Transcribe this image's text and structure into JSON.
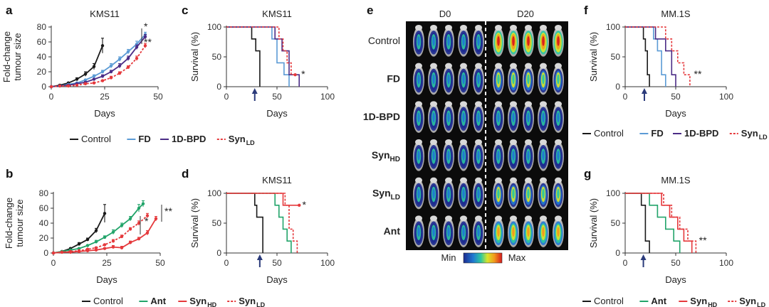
{
  "colors": {
    "control": "#1a1a1a",
    "fd": "#5b9bd5",
    "bpd": "#4b2c86",
    "syn_ld": "#e5393c",
    "syn_hd": "#e5393c",
    "ant": "#22a46a",
    "arrow": "#2a3a7a"
  },
  "panel_e": {
    "label": "e",
    "time_left": "D0",
    "time_right": "D20",
    "rows": [
      {
        "label": "Control",
        "bold": false
      },
      {
        "label": "FD",
        "bold": true
      },
      {
        "label": "1D-BPD",
        "bold": true
      },
      {
        "label": "Syn",
        "sub": "HD",
        "bold": true
      },
      {
        "label": "Syn",
        "sub": "LD",
        "bold": true
      },
      {
        "label": "Ant",
        "bold": true
      }
    ],
    "scale_min": "Min",
    "scale_max": "Max"
  },
  "legends": {
    "ac": [
      {
        "key": "control",
        "label": "Control"
      },
      {
        "key": "fd",
        "label": "FD",
        "bold": true
      },
      {
        "key": "bpd",
        "label": "1D-BPD",
        "bold": true
      },
      {
        "key": "syn_ld",
        "label": "Syn",
        "sub": "LD",
        "bold": true,
        "dashed": true
      }
    ],
    "bd": [
      {
        "key": "control",
        "label": "Control"
      },
      {
        "key": "ant",
        "label": "Ant",
        "bold": true
      },
      {
        "key": "syn_hd",
        "label": "Syn",
        "sub": "HD",
        "bold": true
      },
      {
        "key": "syn_ld",
        "label": "Syn",
        "sub": "LD",
        "bold": true,
        "dashed": true
      }
    ],
    "f": [
      {
        "key": "control",
        "label": "Control"
      },
      {
        "key": "fd",
        "label": "FD",
        "bold": true
      },
      {
        "key": "bpd",
        "label": "1D-BPD",
        "bold": true
      },
      {
        "key": "syn_ld",
        "label": "Syn",
        "sub": "LD",
        "bold": true,
        "dashed": true
      }
    ],
    "g": [
      {
        "key": "control",
        "label": "Control"
      },
      {
        "key": "ant",
        "label": "Ant",
        "bold": true
      },
      {
        "key": "syn_hd",
        "label": "Syn",
        "sub": "HD",
        "bold": true
      },
      {
        "key": "syn_ld",
        "label": "Syn",
        "sub": "LD",
        "bold": true,
        "dashed": true
      }
    ]
  },
  "chart_data": [
    {
      "panel": "a",
      "type": "line",
      "title": "KMS11",
      "xlabel": "Days",
      "ylabel": "Fold-change tumour size",
      "xlim": [
        0,
        50
      ],
      "ylim": [
        0,
        80
      ],
      "xticks": [
        0,
        25,
        50
      ],
      "yticks": [
        0,
        20,
        40,
        60,
        80
      ],
      "annotations": [
        "*",
        "**"
      ],
      "series": [
        {
          "key": "control",
          "x": [
            0,
            4,
            8,
            12,
            16,
            20,
            24
          ],
          "y": [
            0,
            2,
            5,
            10,
            17,
            27,
            55
          ],
          "err": [
            0,
            1,
            1,
            2,
            3,
            4,
            10
          ]
        },
        {
          "key": "fd",
          "x": [
            0,
            4,
            8,
            12,
            16,
            20,
            24,
            28,
            32,
            36,
            40,
            44
          ],
          "y": [
            0,
            1,
            3,
            5,
            9,
            14,
            20,
            28,
            37,
            47,
            57,
            70
          ],
          "err": [
            0,
            0,
            1,
            1,
            1,
            2,
            2,
            3,
            3,
            3,
            4,
            3
          ]
        },
        {
          "key": "bpd",
          "x": [
            0,
            4,
            8,
            12,
            16,
            20,
            24,
            28,
            32,
            36,
            40,
            44
          ],
          "y": [
            0,
            1,
            2,
            4,
            6,
            10,
            14,
            20,
            28,
            38,
            53,
            67
          ],
          "err": [
            0,
            0,
            1,
            1,
            1,
            1,
            2,
            2,
            3,
            3,
            3,
            3
          ]
        },
        {
          "key": "syn_ld",
          "x": [
            0,
            4,
            8,
            12,
            16,
            20,
            24,
            28,
            32,
            36,
            40,
            44
          ],
          "y": [
            0,
            1,
            1,
            2,
            4,
            5,
            8,
            12,
            18,
            26,
            38,
            55
          ],
          "err": [
            0,
            0,
            0,
            1,
            1,
            1,
            1,
            2,
            2,
            2,
            3,
            3
          ],
          "dashed": true
        }
      ]
    },
    {
      "panel": "b",
      "type": "line",
      "title": "",
      "xlabel": "Days",
      "ylabel": "Fold-change tumour size",
      "xlim": [
        0,
        50
      ],
      "ylim": [
        0,
        80
      ],
      "xticks": [
        0,
        25,
        50
      ],
      "yticks": [
        0,
        20,
        40,
        60,
        80
      ],
      "annotations": [
        "**",
        "*"
      ],
      "series": [
        {
          "key": "control",
          "x": [
            0,
            4,
            8,
            12,
            16,
            20,
            24
          ],
          "y": [
            0,
            2,
            6,
            12,
            18,
            30,
            53
          ],
          "err": [
            0,
            1,
            1,
            2,
            2,
            3,
            12
          ]
        },
        {
          "key": "ant",
          "x": [
            0,
            4,
            8,
            12,
            16,
            20,
            24,
            28,
            32,
            36,
            40,
            42
          ],
          "y": [
            0,
            2,
            4,
            6,
            10,
            15,
            21,
            28,
            37,
            46,
            60,
            66
          ],
          "err": [
            0,
            0,
            1,
            1,
            1,
            2,
            2,
            3,
            3,
            3,
            5,
            4
          ]
        },
        {
          "key": "syn_ld",
          "x": [
            0,
            4,
            8,
            12,
            16,
            20,
            24,
            28,
            32,
            36,
            40,
            44
          ],
          "y": [
            0,
            1,
            2,
            3,
            5,
            7,
            11,
            16,
            22,
            32,
            40,
            50
          ],
          "err": [
            0,
            0,
            0,
            1,
            1,
            1,
            1,
            2,
            2,
            2,
            3,
            3
          ],
          "dashed": true
        },
        {
          "key": "syn_hd",
          "x": [
            0,
            4,
            8,
            12,
            16,
            20,
            24,
            28,
            32,
            36,
            40,
            44,
            48
          ],
          "y": [
            0,
            1,
            1,
            2,
            3,
            4,
            6,
            8,
            7,
            14,
            19,
            27,
            46
          ],
          "err": [
            0,
            0,
            0,
            1,
            1,
            1,
            1,
            2,
            2,
            2,
            2,
            3,
            3
          ]
        }
      ]
    },
    {
      "panel": "c",
      "type": "survival",
      "title": "KMS11",
      "xlabel": "Days",
      "ylabel": "Survival (%)",
      "xlim": [
        0,
        100
      ],
      "ylim": [
        0,
        100
      ],
      "xticks": [
        0,
        50,
        100
      ],
      "yticks": [
        0,
        50,
        100
      ],
      "arrow_day": 28,
      "annotations": [
        "*"
      ],
      "series": [
        {
          "key": "control",
          "x": [
            0,
            25,
            25,
            29,
            29,
            33,
            33
          ],
          "y": [
            100,
            100,
            80,
            80,
            60,
            60,
            0
          ]
        },
        {
          "key": "fd",
          "x": [
            0,
            45,
            45,
            50,
            50,
            57,
            57,
            62,
            62
          ],
          "y": [
            100,
            100,
            80,
            80,
            40,
            40,
            20,
            20,
            0
          ]
        },
        {
          "key": "bpd",
          "x": [
            0,
            48,
            48,
            55,
            55,
            62,
            62,
            67,
            67,
            72,
            72
          ],
          "y": [
            100,
            100,
            80,
            80,
            60,
            60,
            20,
            20,
            20,
            20,
            0
          ]
        },
        {
          "key": "syn_ld",
          "x": [
            0,
            52,
            52,
            56,
            56,
            60,
            60,
            64,
            64,
            68,
            68
          ],
          "y": [
            100,
            100,
            80,
            80,
            60,
            60,
            40,
            40,
            20,
            20,
            20
          ],
          "dashed": true
        }
      ]
    },
    {
      "panel": "d",
      "type": "survival",
      "title": "KMS11",
      "xlabel": "Days",
      "ylabel": "Survival (%)",
      "xlim": [
        0,
        100
      ],
      "ylim": [
        0,
        100
      ],
      "xticks": [
        0,
        50,
        100
      ],
      "yticks": [
        0,
        50,
        100
      ],
      "arrow_day": 33,
      "annotations": [
        "*"
      ],
      "series": [
        {
          "key": "control",
          "x": [
            0,
            28,
            28,
            30,
            30,
            36,
            36
          ],
          "y": [
            100,
            100,
            80,
            80,
            60,
            60,
            0
          ]
        },
        {
          "key": "ant",
          "x": [
            0,
            48,
            48,
            52,
            52,
            56,
            56,
            60,
            60,
            64,
            64
          ],
          "y": [
            100,
            100,
            80,
            80,
            60,
            60,
            40,
            40,
            20,
            20,
            0
          ]
        },
        {
          "key": "syn_hd",
          "x": [
            0,
            56,
            56,
            68,
            68,
            72
          ],
          "y": [
            100,
            100,
            80,
            80,
            80,
            80
          ]
        },
        {
          "key": "syn_ld",
          "x": [
            0,
            58,
            58,
            62,
            62,
            66,
            66,
            70,
            70
          ],
          "y": [
            100,
            100,
            80,
            80,
            40,
            40,
            20,
            20,
            0
          ],
          "dashed": true
        }
      ]
    },
    {
      "panel": "f",
      "type": "survival",
      "title": "MM.1S",
      "xlabel": "Days",
      "ylabel": "Survival (%)",
      "xlim": [
        0,
        100
      ],
      "ylim": [
        0,
        100
      ],
      "xticks": [
        0,
        50,
        100
      ],
      "yticks": [
        0,
        50,
        100
      ],
      "arrow_day": 19,
      "annotations": [
        "**"
      ],
      "series": [
        {
          "key": "control",
          "x": [
            0,
            18,
            18,
            20,
            20,
            22,
            22,
            24,
            24
          ],
          "y": [
            100,
            100,
            80,
            80,
            60,
            60,
            20,
            20,
            0
          ]
        },
        {
          "key": "fd",
          "x": [
            0,
            28,
            28,
            32,
            32,
            36,
            36,
            40,
            40
          ],
          "y": [
            100,
            100,
            80,
            80,
            60,
            60,
            20,
            20,
            0
          ]
        },
        {
          "key": "bpd",
          "x": [
            0,
            30,
            30,
            40,
            40,
            46,
            46,
            50,
            50
          ],
          "y": [
            100,
            100,
            80,
            80,
            60,
            60,
            20,
            20,
            0
          ]
        },
        {
          "key": "syn_ld",
          "x": [
            0,
            40,
            40,
            46,
            46,
            52,
            52,
            58,
            58,
            64,
            64
          ],
          "y": [
            100,
            100,
            80,
            80,
            60,
            60,
            40,
            40,
            20,
            20,
            0
          ],
          "dashed": true
        }
      ]
    },
    {
      "panel": "g",
      "type": "survival",
      "title": "MM.1S",
      "xlabel": "Days",
      "ylabel": "Survival (%)",
      "xlim": [
        0,
        100
      ],
      "ylim": [
        0,
        100
      ],
      "xticks": [
        0,
        50,
        100
      ],
      "yticks": [
        0,
        50,
        100
      ],
      "arrow_day": 18,
      "annotations": [
        "**"
      ],
      "series": [
        {
          "key": "control",
          "x": [
            0,
            16,
            16,
            20,
            20,
            24,
            24
          ],
          "y": [
            100,
            100,
            80,
            80,
            20,
            20,
            0
          ]
        },
        {
          "key": "ant",
          "x": [
            0,
            24,
            24,
            32,
            32,
            40,
            40,
            48,
            48,
            54,
            54
          ],
          "y": [
            100,
            100,
            80,
            80,
            60,
            60,
            40,
            40,
            20,
            20,
            0
          ]
        },
        {
          "key": "syn_hd",
          "x": [
            0,
            36,
            36,
            44,
            44,
            52,
            52,
            58,
            58,
            66,
            66
          ],
          "y": [
            100,
            100,
            80,
            80,
            60,
            60,
            40,
            40,
            20,
            20,
            0
          ]
        },
        {
          "key": "syn_ld",
          "x": [
            0,
            38,
            38,
            46,
            46,
            54,
            54,
            62,
            62,
            70,
            70
          ],
          "y": [
            100,
            100,
            80,
            80,
            60,
            60,
            40,
            40,
            20,
            20,
            0
          ],
          "dashed": true
        }
      ]
    }
  ]
}
